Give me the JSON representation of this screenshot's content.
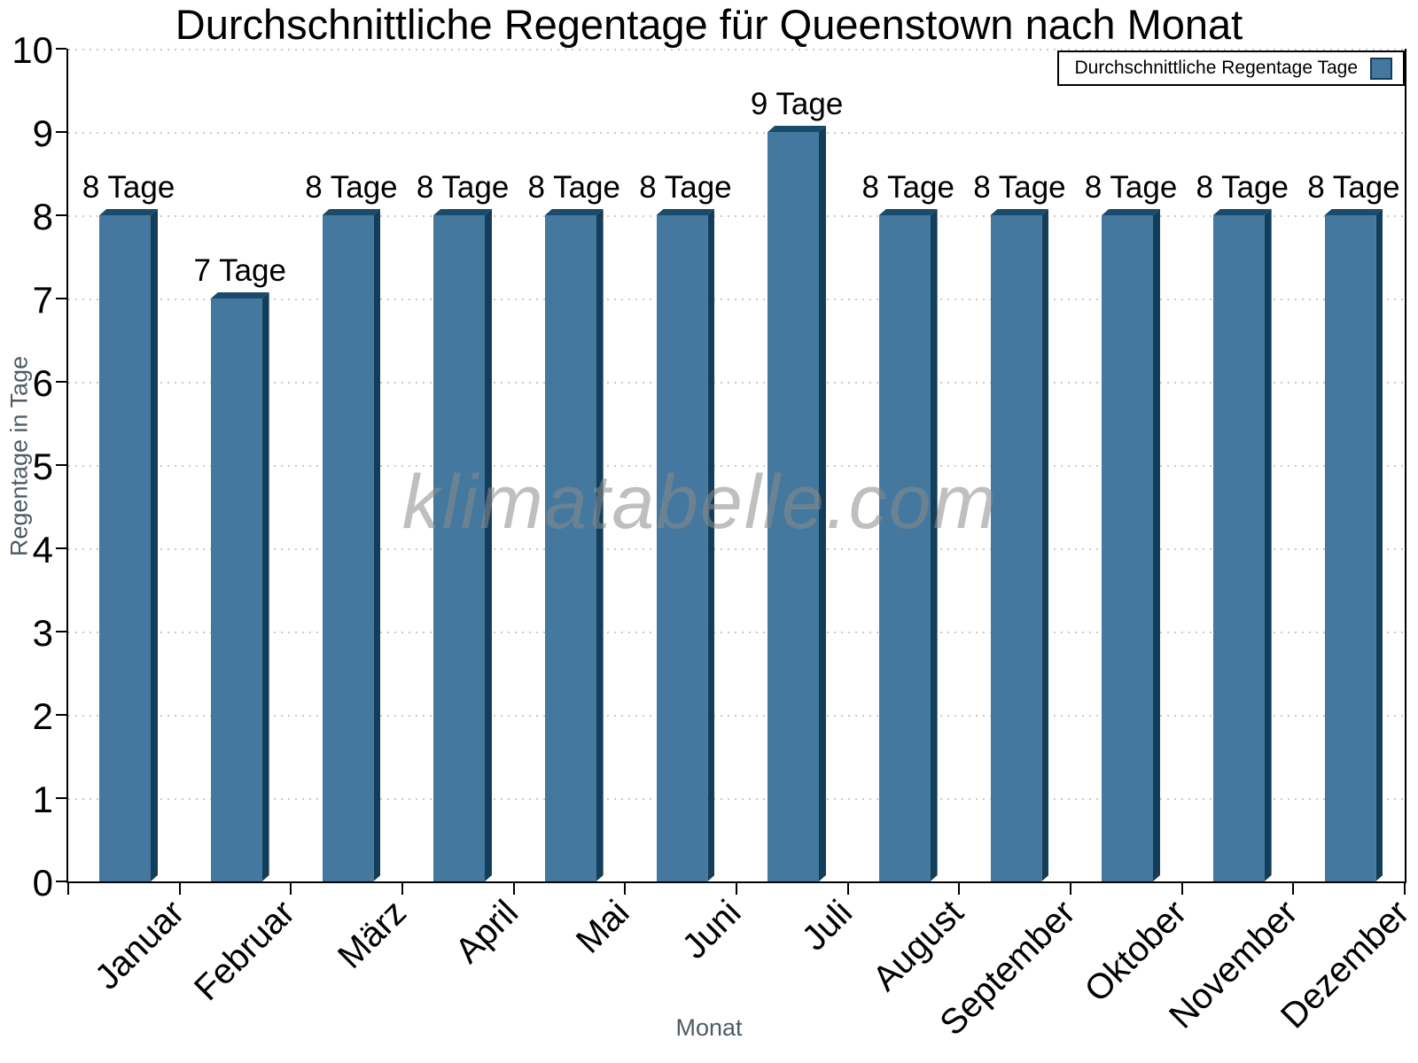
{
  "title": "Durchschnittliche Regentage für Queenstown nach Monat",
  "legend": {
    "label": "Durchschnittliche Regentage Tage"
  },
  "watermark": "klimatabelle.com",
  "chart_data": {
    "type": "bar",
    "title": "Durchschnittliche Regentage für Queenstown nach Monat",
    "xlabel": "Monat",
    "ylabel": "Regentage in Tage",
    "categories": [
      "Januar",
      "Februar",
      "März",
      "April",
      "Mai",
      "Juni",
      "Juli",
      "August",
      "September",
      "Oktober",
      "November",
      "Dezember"
    ],
    "series": [
      {
        "name": "Durchschnittliche Regentage Tage",
        "values": [
          8,
          7,
          8,
          8,
          8,
          8,
          9,
          8,
          8,
          8,
          8,
          8
        ]
      }
    ],
    "bar_labels": [
      "8 Tage",
      "7 Tage",
      "8 Tage",
      "8 Tage",
      "8 Tage",
      "8 Tage",
      "9 Tage",
      "8 Tage",
      "8 Tage",
      "8 Tage",
      "8 Tage",
      "8 Tage"
    ],
    "ylim": [
      0,
      10
    ],
    "yticks": [
      0,
      1,
      2,
      3,
      4,
      5,
      6,
      7,
      8,
      9,
      10
    ],
    "grid": "horizontal-dotted",
    "legend_position": "top-right",
    "bar_style": "3d-bevel",
    "colors": {
      "bar_front": "#44789E",
      "bar_side": "#123E5B",
      "bar_top": "#1B4B6A",
      "gridline": "#c9c9c9",
      "axis": "#000000",
      "axis_title": "#4e5b66",
      "watermark": "#8b8b8b"
    }
  }
}
